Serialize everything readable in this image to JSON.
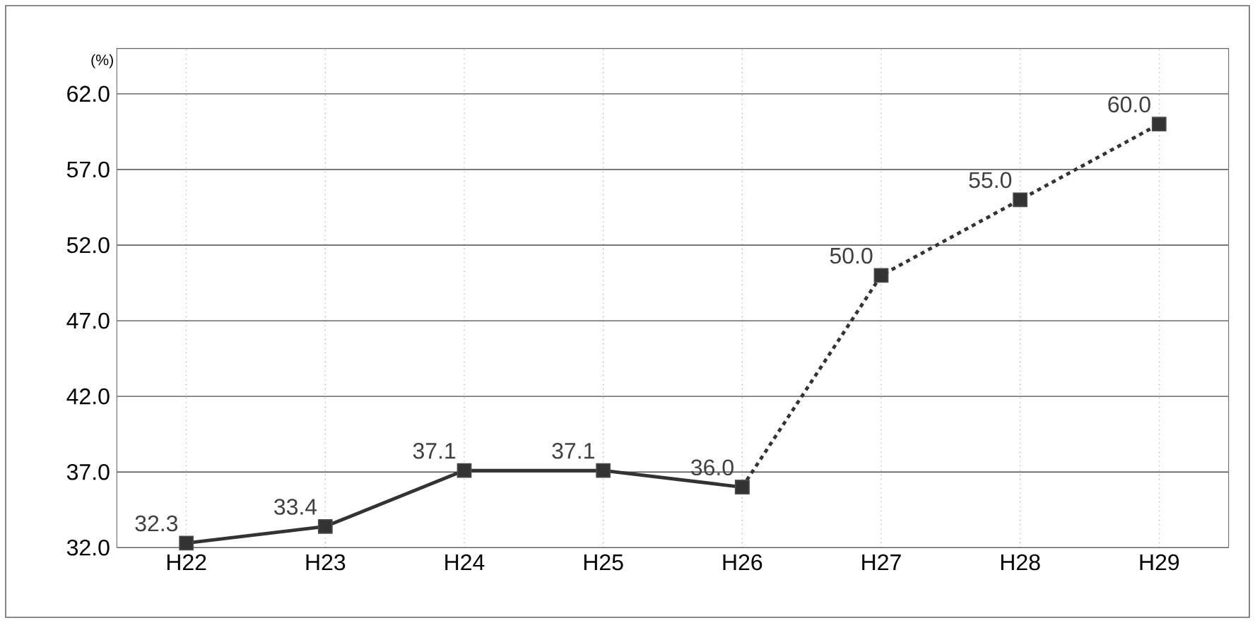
{
  "chart_data": {
    "type": "line",
    "ylabel": "(%)",
    "categories": [
      "H22",
      "H23",
      "H24",
      "H25",
      "H26",
      "H27",
      "H28",
      "H29"
    ],
    "series": [
      {
        "color": "#333333",
        "line_style": "solid",
        "values": [
          32.3,
          33.4,
          37.1,
          37.1,
          36.0,
          null,
          null,
          null
        ],
        "value_labels": [
          "32.3",
          "33.4",
          "37.1",
          "37.1",
          "36.0",
          null,
          null,
          null
        ]
      },
      {
        "color": "#333333",
        "line_style": "dotted",
        "values": [
          null,
          null,
          null,
          null,
          36.0,
          50.0,
          55.0,
          60.0
        ],
        "value_labels": [
          null,
          null,
          null,
          null,
          null,
          "50.0",
          "55.0",
          "60.0"
        ]
      }
    ],
    "ylim": [
      32,
      65
    ],
    "yticks": [
      {
        "value": 32,
        "label": "32.0"
      },
      {
        "value": 37,
        "label": "37.0"
      },
      {
        "value": 42,
        "label": "42.0"
      },
      {
        "value": 47,
        "label": "47.0"
      },
      {
        "value": 52,
        "label": "52.0"
      },
      {
        "value": 57,
        "label": "57.0"
      },
      {
        "value": 62,
        "label": "62.0"
      }
    ],
    "grid": true,
    "marker": "square"
  }
}
